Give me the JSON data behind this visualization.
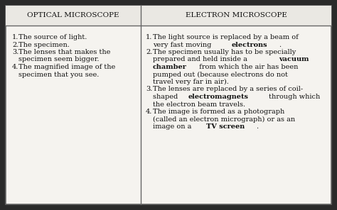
{
  "title_left": "OPTICAL MICROSCOPE",
  "title_right": "ELECTRON MICROSCOPE",
  "outer_bg": "#2a2a2a",
  "table_bg": "#f5f3ef",
  "header_bg": "#eae8e3",
  "border_color": "#666666",
  "text_color": "#111111",
  "left_items": [
    [
      [
        "The source of light.",
        false
      ]
    ],
    [
      [
        "The specimen.",
        false
      ]
    ],
    [
      [
        "The lenses that makes the",
        false
      ]
    ],
    [
      [
        "specimen seem bigger.",
        false
      ]
    ],
    [
      [
        "The magnified image of the",
        false
      ]
    ],
    [
      [
        "specimen that you see.",
        false
      ]
    ]
  ],
  "left_numbers": [
    "1.",
    "2.",
    "3.",
    "",
    "4.",
    ""
  ],
  "right_items_lines": [
    [
      [
        [
          "The light source is replaced by a beam of",
          false
        ]
      ]
    ],
    [
      [
        [
          "very fast moving ",
          false
        ],
        [
          "electrons",
          true
        ],
        [
          ".",
          false
        ]
      ]
    ],
    [
      [
        [
          "The specimen usually has to be specially",
          false
        ]
      ]
    ],
    [
      [
        [
          "prepared and held inside a ",
          false
        ],
        [
          "vacuum",
          true
        ]
      ]
    ],
    [
      [
        [
          "chamber",
          true
        ],
        [
          " from which the air has been",
          false
        ]
      ]
    ],
    [
      [
        [
          "pumped out (because electrons do not",
          false
        ]
      ]
    ],
    [
      [
        [
          "travel very far in air).",
          false
        ]
      ]
    ],
    [
      [
        [
          "The lenses are replaced by a series of coil-",
          false
        ]
      ]
    ],
    [
      [
        [
          "shaped ",
          false
        ],
        [
          "electromagnets",
          true
        ],
        [
          " through which",
          false
        ]
      ]
    ],
    [
      [
        [
          "the electron beam travels.",
          false
        ]
      ]
    ],
    [
      [
        [
          "The image is formed as a photograph",
          false
        ]
      ]
    ],
    [
      [
        [
          "(called an electron micrograph) or as an",
          false
        ]
      ]
    ],
    [
      [
        [
          "image on a ",
          false
        ],
        [
          "TV screen",
          true
        ],
        [
          ".",
          false
        ]
      ]
    ]
  ],
  "right_numbers": [
    "1.",
    "",
    "2.",
    "",
    "",
    "",
    "",
    "3.",
    "",
    "",
    "4.",
    "",
    ""
  ],
  "font_size": 7.0,
  "header_font_size": 7.5
}
